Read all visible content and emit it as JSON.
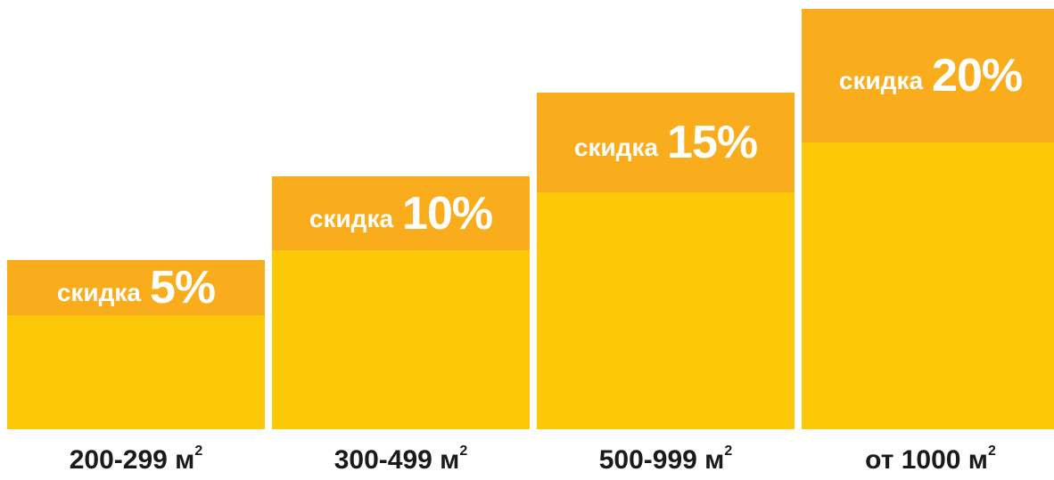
{
  "chart_data": {
    "type": "bar",
    "title": "",
    "xlabel": "",
    "ylabel": "",
    "categories": [
      "200-299 м",
      "300-499 м",
      "500-999 м",
      "от 1000 м"
    ],
    "category_unit_superscript": "2",
    "bar_prefix": "скидка",
    "values": [
      5,
      10,
      15,
      20
    ],
    "value_labels": [
      "5%",
      "10%",
      "15%",
      "20%"
    ],
    "ylim": [
      0,
      20
    ],
    "grid": false,
    "legend": "none",
    "colors": {
      "bar_body": "#fdc808",
      "bar_header": "#f9ac1c",
      "header_text": "#ffffff",
      "category_text": "#1a1a1a"
    }
  }
}
